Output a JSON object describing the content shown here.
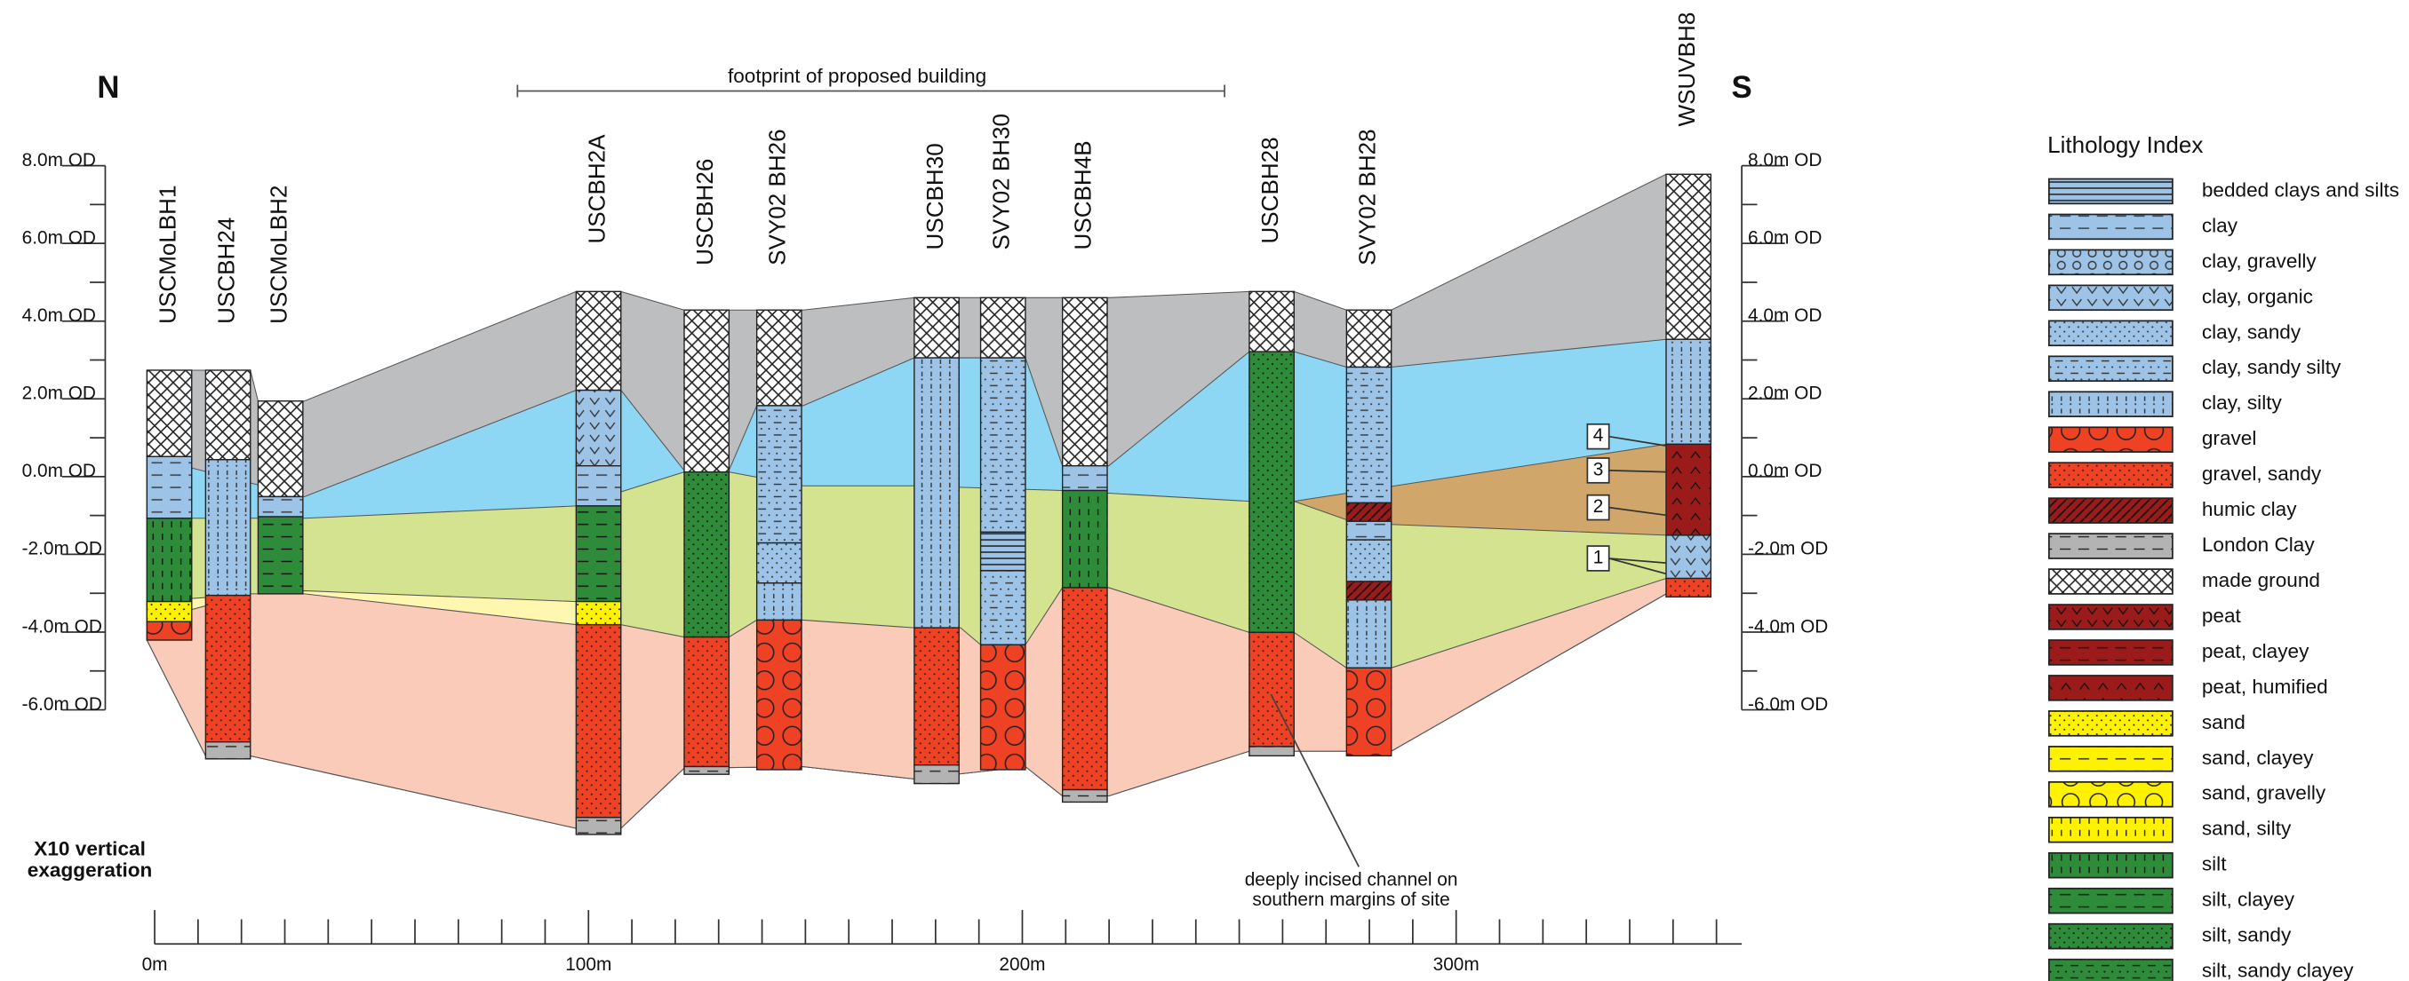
{
  "compass": {
    "north": "N",
    "south": "S"
  },
  "building_footprint": "footprint of proposed building",
  "elevation_labels": [
    "8.0m OD",
    "6.0m OD",
    "4.0m OD",
    "2.0m OD",
    "0.0m OD",
    "-2.0m OD",
    "-4.0m OD",
    "-6.0m OD"
  ],
  "boreholes": [
    "USCMoLBH1",
    "USCBH24",
    "USCMoLBH2",
    "USCBH2A",
    "USCBH26",
    "SVY02 BH26",
    "USCBH30",
    "SVY02 BH30",
    "USCBH4B",
    "USCBH28",
    "SVY02 BH28",
    "WSUVBH8"
  ],
  "distance_labels": [
    "0m",
    "100m",
    "200m",
    "300m"
  ],
  "exaggeration": [
    "X10 vertical",
    "exaggeration"
  ],
  "annotation": [
    "deeply incised channel on",
    "southern margins of site"
  ],
  "callouts": [
    "1",
    "2",
    "3",
    "4"
  ],
  "legend": {
    "title": "Lithology Index",
    "items": [
      "bedded clays and silts",
      "clay",
      "clay, gravelly",
      "clay, organic",
      "clay, sandy",
      "clay, sandy silty",
      "clay, silty",
      "gravel",
      "gravel, sandy",
      "humic clay",
      "London Clay",
      "made ground",
      "peat",
      "peat, clayey",
      "peat, humified",
      "sand",
      "sand, clayey",
      "sand, gravelly",
      "sand, silty",
      "silt",
      "silt, clayey",
      "silt, sandy",
      "silt, sandy clayey"
    ]
  }
}
